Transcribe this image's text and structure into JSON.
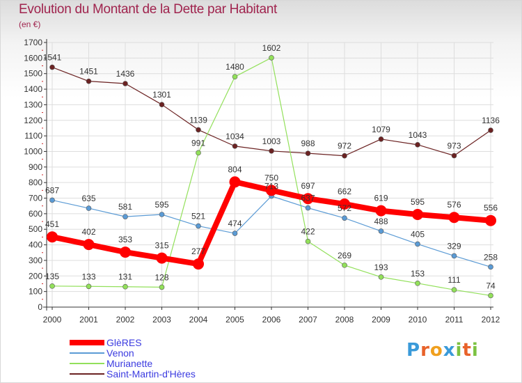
{
  "title": "Evolution du Montant de la Dette par Habitant",
  "unit_note": "(en €)",
  "logo": {
    "letters": [
      "P",
      "r",
      "o",
      "x",
      "i",
      "t",
      "i"
    ],
    "colors": [
      "#3a9ad9",
      "#e8622a",
      "#f0a01e",
      "#3a9ad9",
      "#7cc242",
      "#e8622a",
      "#7cc242"
    ]
  },
  "chart_data": {
    "type": "line",
    "title": "Evolution du Montant de la Dette par Habitant",
    "ylabel": "(en €)",
    "xlabel": "",
    "ylim": [
      0,
      1700
    ],
    "y_ticks": [
      0,
      100,
      200,
      300,
      400,
      500,
      600,
      700,
      800,
      900,
      1000,
      1100,
      1200,
      1300,
      1400,
      1500,
      1600,
      1700
    ],
    "x": [
      "2000",
      "2001",
      "2002",
      "2003",
      "2004",
      "2005",
      "2006",
      "2007",
      "2008",
      "2009",
      "2010",
      "2011",
      "2012"
    ],
    "grid": true,
    "legend_position": "bottom-left",
    "series": [
      {
        "name": "GlèRES",
        "color": "#ff0000",
        "width": 8,
        "marker": 8,
        "values": [
          451,
          402,
          353,
          315,
          277,
          804,
          750,
          697,
          662,
          619,
          595,
          576,
          556
        ]
      },
      {
        "name": "Venon",
        "color": "#5b9bd5",
        "width": 1.2,
        "marker": 3.5,
        "values": [
          687,
          635,
          581,
          595,
          521,
          474,
          713,
          637,
          572,
          488,
          405,
          329,
          258
        ]
      },
      {
        "name": "Murianette",
        "color": "#92e05a",
        "width": 1.2,
        "marker": 3.5,
        "values": [
          135,
          133,
          131,
          128,
          991,
          1480,
          1602,
          422,
          269,
          193,
          153,
          111,
          74
        ]
      },
      {
        "name": "Saint-Martin-d'Hères",
        "color": "#6b2222",
        "width": 1.2,
        "marker": 3.5,
        "values": [
          1541,
          1451,
          1436,
          1301,
          1139,
          1034,
          1003,
          988,
          972,
          1079,
          1043,
          973,
          1136
        ]
      }
    ],
    "value_labels": [
      [
        "451",
        "402",
        "353",
        "315",
        "277",
        "804",
        "750",
        "697",
        "662",
        "619",
        "595",
        "576",
        "556"
      ],
      [
        "687",
        "635",
        "581",
        "595",
        "521",
        "474",
        "713",
        "637",
        "572",
        "488",
        "405",
        "329",
        "258"
      ],
      [
        "135",
        "133",
        "131",
        "128",
        "991",
        "1480",
        "1602",
        "422",
        "269",
        "193",
        "153",
        "111",
        "74"
      ],
      [
        "1541",
        "1451",
        "1436",
        "1301",
        "1139",
        "1034",
        "1003",
        "988",
        "972",
        "1079",
        "1043",
        "973",
        "1136"
      ]
    ]
  }
}
